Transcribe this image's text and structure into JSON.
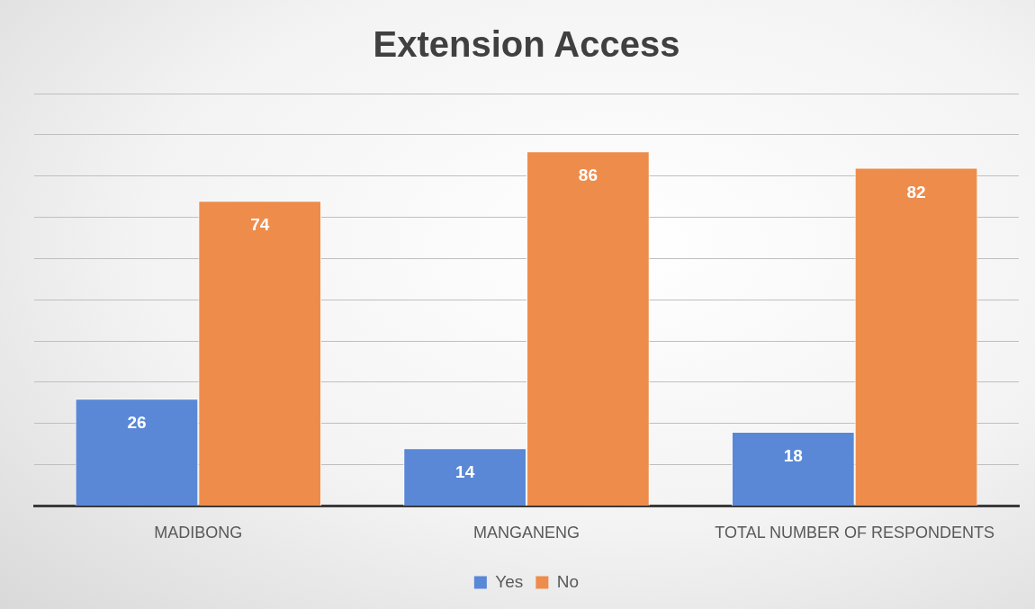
{
  "chart_data": {
    "type": "bar",
    "title": "Extension Access",
    "categories": [
      "MADIBONG",
      "MANGANENG",
      "TOTAL NUMBER OF RESPONDENTS"
    ],
    "series": [
      {
        "name": "Yes",
        "color": "#5a88d6",
        "values": [
          26,
          14,
          18
        ]
      },
      {
        "name": "No",
        "color": "#ee8c4c",
        "values": [
          74,
          86,
          82
        ]
      }
    ],
    "ylim": [
      0,
      100
    ],
    "yticks": [
      {
        "value": 0,
        "label": null
      },
      {
        "value": 10,
        "label": null
      },
      {
        "value": 20,
        "label": null
      },
      {
        "value": 30,
        "label": null
      },
      {
        "value": 40,
        "label": null
      },
      {
        "value": 50,
        "label": null
      },
      {
        "value": 60,
        "label": null
      },
      {
        "value": 70,
        "label": null
      },
      {
        "value": 80,
        "label": null
      },
      {
        "value": 90,
        "label": null
      },
      {
        "value": 100,
        "label": null
      }
    ],
    "tick_labels": "x",
    "grid": "y",
    "legend": "bottom",
    "data_labels": true
  }
}
